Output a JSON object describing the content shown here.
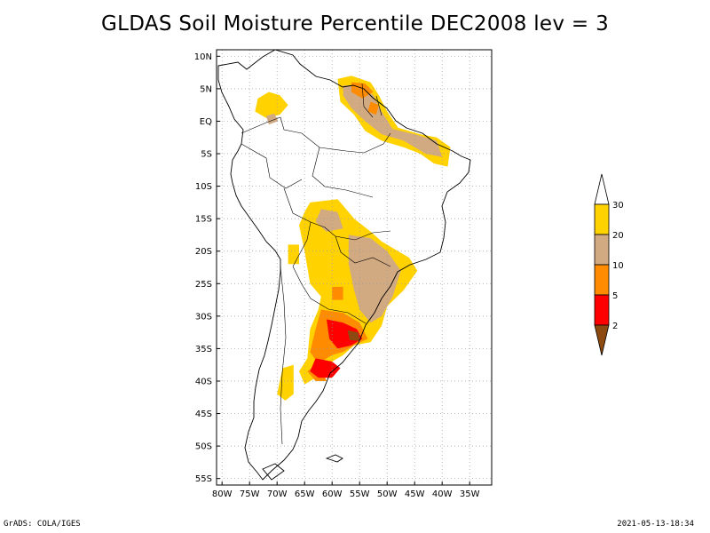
{
  "title": "GLDAS Soil Moisture Percentile DEC2008 lev = 3",
  "footer": {
    "left": "GrADS: COLA/IGES",
    "right": "2021-05-13-18:34"
  },
  "colors": {
    "background": "#ffffff",
    "gridline": "#9a9a9a",
    "coast": "#000000",
    "lt2": "#8c4a10",
    "p2_5": "#ff0000",
    "p5_10": "#ff8c00",
    "p10_20": "#d2aa82",
    "p20_30": "#ffd200"
  },
  "chart_data": {
    "type": "heatmap",
    "title": "GLDAS Soil Moisture Percentile DEC2008 lev = 3",
    "xlim": [
      -81,
      -31
    ],
    "ylim": [
      -56,
      11
    ],
    "x_ticks": [
      {
        "value": -80,
        "label": "80W"
      },
      {
        "value": -75,
        "label": "75W"
      },
      {
        "value": -70,
        "label": "70W"
      },
      {
        "value": -65,
        "label": "65W"
      },
      {
        "value": -60,
        "label": "60W"
      },
      {
        "value": -55,
        "label": "55W"
      },
      {
        "value": -50,
        "label": "50W"
      },
      {
        "value": -45,
        "label": "45W"
      },
      {
        "value": -40,
        "label": "40W"
      },
      {
        "value": -35,
        "label": "35W"
      }
    ],
    "y_ticks": [
      {
        "value": 10,
        "label": "10N"
      },
      {
        "value": 5,
        "label": "5N"
      },
      {
        "value": 0,
        "label": "EQ"
      },
      {
        "value": -5,
        "label": "5S"
      },
      {
        "value": -10,
        "label": "10S"
      },
      {
        "value": -15,
        "label": "15S"
      },
      {
        "value": -20,
        "label": "20S"
      },
      {
        "value": -25,
        "label": "25S"
      },
      {
        "value": -30,
        "label": "30S"
      },
      {
        "value": -35,
        "label": "35S"
      },
      {
        "value": -40,
        "label": "40S"
      },
      {
        "value": -45,
        "label": "45S"
      },
      {
        "value": -50,
        "label": "50S"
      },
      {
        "value": -55,
        "label": "55S"
      }
    ],
    "grid": true,
    "colorbar": {
      "position": "right",
      "bins": [
        {
          "from": null,
          "to": 2,
          "color": "#8c4a10"
        },
        {
          "from": 2,
          "to": 5,
          "color": "#ff0000"
        },
        {
          "from": 5,
          "to": 10,
          "color": "#ff8c00"
        },
        {
          "from": 10,
          "to": 20,
          "color": "#d2aa82"
        },
        {
          "from": 20,
          "to": 30,
          "color": "#ffd200"
        },
        {
          "from": 30,
          "to": null,
          "color": "#ffffff"
        }
      ],
      "labels": [
        "2",
        "5",
        "10",
        "20",
        "30"
      ]
    },
    "regions": [
      {
        "bin": "20-30",
        "lonlat": [
          [
            -73.5,
            3.5
          ],
          [
            -71.5,
            4.5
          ],
          [
            -69.5,
            4
          ],
          [
            -68,
            2.5
          ],
          [
            -69.5,
            1
          ],
          [
            -72,
            0.5
          ],
          [
            -74,
            1.5
          ]
        ]
      },
      {
        "bin": "10-20",
        "lonlat": [
          [
            -72,
            0.8
          ],
          [
            -70.5,
            1.2
          ],
          [
            -69.8,
            0
          ],
          [
            -71.5,
            -0.5
          ]
        ]
      },
      {
        "bin": "20-30",
        "lonlat": [
          [
            -59,
            6.5
          ],
          [
            -56.5,
            7
          ],
          [
            -53,
            6
          ],
          [
            -51.5,
            4
          ],
          [
            -50,
            1.5
          ],
          [
            -48,
            -1
          ],
          [
            -44,
            -2
          ],
          [
            -41,
            -2.5
          ],
          [
            -38.5,
            -4
          ],
          [
            -39,
            -7
          ],
          [
            -41.5,
            -6.5
          ],
          [
            -44,
            -5
          ],
          [
            -47,
            -4
          ],
          [
            -51,
            -3
          ],
          [
            -54,
            -1.5
          ],
          [
            -56,
            1
          ],
          [
            -58.5,
            3
          ]
        ]
      },
      {
        "bin": "10-20",
        "lonlat": [
          [
            -58,
            5.5
          ],
          [
            -55,
            5.5
          ],
          [
            -52.5,
            4
          ],
          [
            -51,
            1.5
          ],
          [
            -49,
            -1.2
          ],
          [
            -45,
            -2
          ],
          [
            -41,
            -3
          ],
          [
            -40,
            -5.5
          ],
          [
            -43,
            -5
          ],
          [
            -47,
            -3
          ],
          [
            -51,
            -2
          ],
          [
            -54,
            0
          ],
          [
            -56.5,
            2
          ],
          [
            -58,
            4
          ]
        ]
      },
      {
        "bin": "5-10",
        "lonlat": [
          [
            -56.5,
            6
          ],
          [
            -54,
            5.8
          ],
          [
            -52.5,
            4.5
          ],
          [
            -54.5,
            3.5
          ],
          [
            -56.5,
            4.5
          ]
        ]
      },
      {
        "bin": "5-10",
        "lonlat": [
          [
            -53,
            3
          ],
          [
            -51.5,
            2.5
          ],
          [
            -52,
            1
          ],
          [
            -53.5,
            1.5
          ]
        ]
      },
      {
        "bin": "20-30",
        "lonlat": [
          [
            -64,
            -12.5
          ],
          [
            -59,
            -12
          ],
          [
            -56,
            -15
          ],
          [
            -53,
            -17
          ],
          [
            -51,
            -18.5
          ],
          [
            -49,
            -19.5
          ],
          [
            -46,
            -21
          ],
          [
            -44.5,
            -23
          ],
          [
            -47,
            -26
          ],
          [
            -50,
            -28.5
          ],
          [
            -51,
            -31.5
          ],
          [
            -53,
            -34
          ],
          [
            -56,
            -34.5
          ],
          [
            -58,
            -36
          ],
          [
            -61,
            -37.5
          ],
          [
            -62,
            -39
          ],
          [
            -65,
            -40.5
          ],
          [
            -66,
            -38.5
          ],
          [
            -64.5,
            -36.5
          ],
          [
            -64,
            -32
          ],
          [
            -62.5,
            -29
          ],
          [
            -62,
            -27
          ],
          [
            -64,
            -25
          ],
          [
            -65,
            -20
          ],
          [
            -66,
            -16
          ],
          [
            -65,
            -14
          ]
        ]
      },
      {
        "bin": "20-30",
        "lonlat": [
          [
            -68,
            -19
          ],
          [
            -66,
            -19
          ],
          [
            -66,
            -22
          ],
          [
            -68,
            -22
          ]
        ]
      },
      {
        "bin": "20-30",
        "lonlat": [
          [
            -69,
            -38
          ],
          [
            -67,
            -37.5
          ],
          [
            -67,
            -42
          ],
          [
            -68.5,
            -43
          ],
          [
            -70,
            -42
          ]
        ]
      },
      {
        "bin": "10-20",
        "lonlat": [
          [
            -57,
            -17.5
          ],
          [
            -53,
            -18
          ],
          [
            -50,
            -20
          ],
          [
            -47.5,
            -23
          ],
          [
            -49,
            -27
          ],
          [
            -51,
            -30
          ],
          [
            -53,
            -31
          ],
          [
            -55,
            -29
          ],
          [
            -56,
            -26
          ],
          [
            -57,
            -22
          ]
        ]
      },
      {
        "bin": "10-20",
        "lonlat": [
          [
            -62,
            -13.5
          ],
          [
            -59,
            -14
          ],
          [
            -58,
            -16.5
          ],
          [
            -61,
            -17
          ],
          [
            -63,
            -15.5
          ]
        ]
      },
      {
        "bin": "5-10",
        "lonlat": [
          [
            -60,
            -25.5
          ],
          [
            -58,
            -25.5
          ],
          [
            -58,
            -27.5
          ],
          [
            -60,
            -27.5
          ]
        ]
      },
      {
        "bin": "5-10",
        "lonlat": [
          [
            -62,
            -29
          ],
          [
            -58,
            -29.5
          ],
          [
            -55,
            -31
          ],
          [
            -53.5,
            -33.5
          ],
          [
            -56,
            -34.5
          ],
          [
            -58,
            -35.5
          ],
          [
            -60,
            -36
          ],
          [
            -63,
            -37.5
          ],
          [
            -64.5,
            -38.5
          ],
          [
            -63,
            -40
          ],
          [
            -61,
            -40
          ],
          [
            -62,
            -38
          ],
          [
            -64,
            -35.5
          ],
          [
            -63,
            -32
          ]
        ]
      },
      {
        "bin": "2-5",
        "lonlat": [
          [
            -61,
            -30.5
          ],
          [
            -58,
            -31
          ],
          [
            -55.5,
            -32
          ],
          [
            -54.5,
            -33.5
          ],
          [
            -56.5,
            -34.5
          ],
          [
            -59,
            -35
          ],
          [
            -60.5,
            -33.5
          ]
        ]
      },
      {
        "bin": "2-5",
        "lonlat": [
          [
            -63,
            -36.5
          ],
          [
            -60,
            -37
          ],
          [
            -58.5,
            -38
          ],
          [
            -60,
            -39.5
          ],
          [
            -62.5,
            -39.5
          ],
          [
            -64,
            -38.5
          ]
        ]
      },
      {
        "bin": "lt2",
        "lonlat": [
          [
            -57.2,
            -32.2
          ],
          [
            -55.3,
            -32.5
          ],
          [
            -55,
            -33.8
          ],
          [
            -56.8,
            -33.7
          ]
        ]
      }
    ]
  }
}
